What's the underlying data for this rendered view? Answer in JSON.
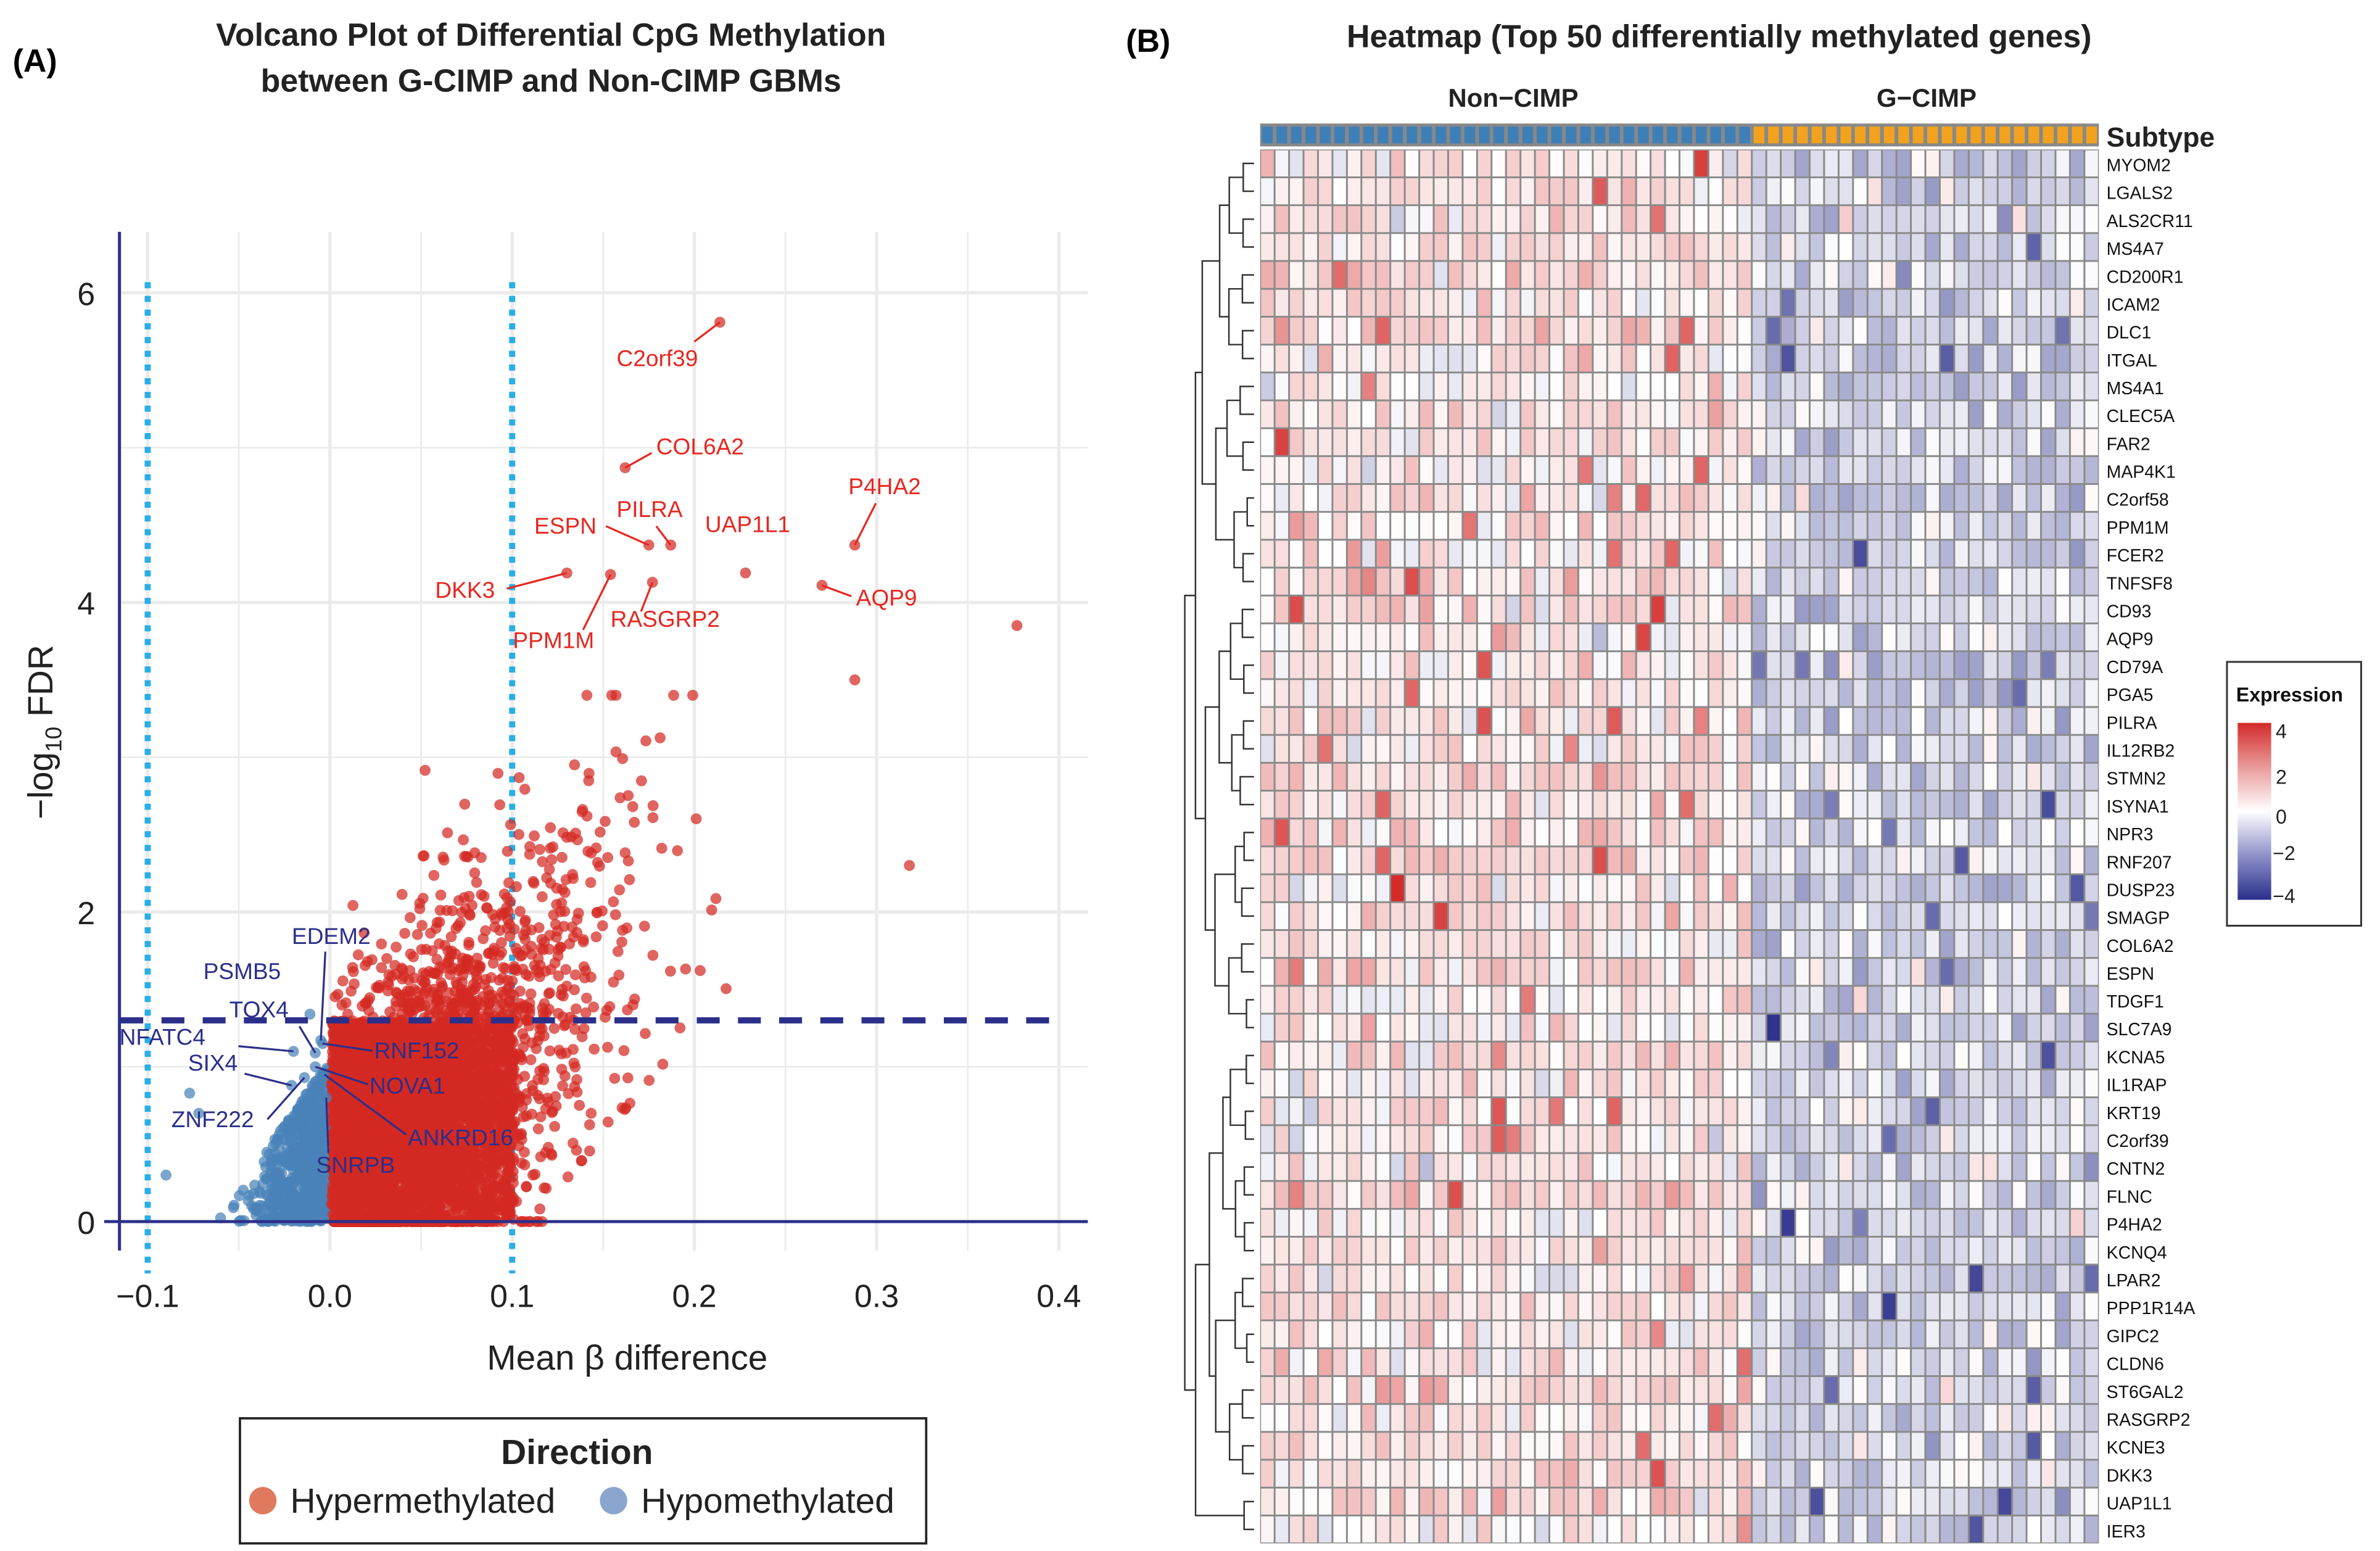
{
  "panel_a": {
    "panel_label": "(A)",
    "title_line1": "Volcano Plot of Differential CpG Methylation",
    "title_line2": "between G-CIMP and Non-CIMP GBMs",
    "legend": {
      "title": "Direction",
      "entries": [
        {
          "label": "Hypermethylated",
          "color": "#e07a5f"
        },
        {
          "label": "Hypomethylated",
          "color": "#8aa6cf"
        }
      ]
    }
  },
  "panel_b": {
    "panel_label": "(B)",
    "title": "Heatmap (Top 50 differentially methylated genes)",
    "group_labels": [
      "Non−CIMP",
      "G−CIMP"
    ],
    "annotation_label": "Subtype",
    "legend": {
      "title": "Expression",
      "ticks": [
        "4",
        "2",
        "0",
        "−2",
        "−4"
      ]
    }
  },
  "chart_data": [
    {
      "type": "scatter",
      "title": "Volcano Plot of Differential CpG Methylation between G-CIMP and Non-CIMP GBMs",
      "xlabel": "Mean β difference",
      "ylabel_prefix": "−log",
      "ylabel_sub": "10",
      "ylabel_suffix": " FDR",
      "xlim": [
        -0.115,
        0.41
      ],
      "ylim": [
        -0.15,
        6.4
      ],
      "xticks": [
        "−0.1",
        "0.0",
        "0.1",
        "0.2",
        "0.3",
        "0.4"
      ],
      "xtick_values": [
        -0.1,
        0,
        0.1,
        0.2,
        0.3,
        0.4
      ],
      "yticks": [
        "0",
        "2",
        "4",
        "6"
      ],
      "ytick_values": [
        0,
        2,
        4,
        6
      ],
      "grid": true,
      "thresholds": {
        "fdr_neglog10": 1.3,
        "beta_diff": [
          -0.1,
          0.1
        ]
      },
      "colors": {
        "hyper": "#d42a22",
        "hypo": "#4a82b8",
        "hyper_label": "#e8261f",
        "hypo_label": "#2b2f8a",
        "threshold_h": "#2b2f8a",
        "threshold_v": "#29aee6"
      },
      "legend_position": "bottom",
      "labeled_points": [
        {
          "gene": "C2orf39",
          "x": 0.214,
          "y": 5.81,
          "dir": "hyper"
        },
        {
          "gene": "COL6A2",
          "x": 0.162,
          "y": 4.87,
          "dir": "hyper"
        },
        {
          "gene": "ESPN",
          "x": 0.175,
          "y": 4.37,
          "dir": "hyper"
        },
        {
          "gene": "PILRA",
          "x": 0.187,
          "y": 4.37,
          "dir": "hyper"
        },
        {
          "gene": "UAP1L1",
          "x": 0.228,
          "y": 4.19,
          "dir": "hyper"
        },
        {
          "gene": "P4HA2",
          "x": 0.288,
          "y": 4.37,
          "dir": "hyper"
        },
        {
          "gene": "AQP9",
          "x": 0.27,
          "y": 4.11,
          "dir": "hyper"
        },
        {
          "gene": "DKK3",
          "x": 0.13,
          "y": 4.19,
          "dir": "hyper"
        },
        {
          "gene": "PPM1M",
          "x": 0.154,
          "y": 4.18,
          "dir": "hyper"
        },
        {
          "gene": "RASGRP2",
          "x": 0.177,
          "y": 4.13,
          "dir": "hyper"
        },
        {
          "gene": "PSMB5",
          "x": -0.011,
          "y": 1.34,
          "dir": "hypo"
        },
        {
          "gene": "EDEM2",
          "x": -0.005,
          "y": 1.17,
          "dir": "hypo"
        },
        {
          "gene": "TOX4",
          "x": -0.008,
          "y": 1.09,
          "dir": "hypo"
        },
        {
          "gene": "NFATC4",
          "x": -0.02,
          "y": 1.1,
          "dir": "hypo"
        },
        {
          "gene": "RNF152",
          "x": -0.004,
          "y": 1.15,
          "dir": "hypo"
        },
        {
          "gene": "NOVA1",
          "x": -0.008,
          "y": 1.0,
          "dir": "hypo"
        },
        {
          "gene": "SIX4",
          "x": -0.021,
          "y": 0.88,
          "dir": "hypo"
        },
        {
          "gene": "ZNF222",
          "x": -0.014,
          "y": 0.93,
          "dir": "hypo"
        },
        {
          "gene": "ANKRD16",
          "x": -0.003,
          "y": 0.95,
          "dir": "hypo"
        },
        {
          "gene": "SNRPB",
          "x": -0.002,
          "y": 0.8,
          "dir": "hypo"
        }
      ],
      "outlier_points": [
        {
          "x": 0.377,
          "y": 3.85
        },
        {
          "x": 0.318,
          "y": 2.3
        },
        {
          "x": 0.288,
          "y": 3.5
        },
        {
          "x": -0.09,
          "y": 0.3
        },
        {
          "x": -0.077,
          "y": 0.83
        },
        {
          "x": -0.072,
          "y": 0.7
        }
      ]
    },
    {
      "type": "heatmap",
      "title": "Heatmap (Top 50 differentially methylated genes)",
      "groups": [
        {
          "name": "Non−CIMP",
          "n": 34,
          "color": "#3f7fb8"
        },
        {
          "name": "G−CIMP",
          "n": 24,
          "color": "#f2a21e"
        }
      ],
      "color_scale": {
        "min": -4,
        "max": 4,
        "low": "#2b2f8a",
        "mid": "#ffffff",
        "high": "#d42a2a"
      },
      "legend_title": "Expression",
      "row_dendrogram": true,
      "genes": [
        "MYOM2",
        "LGALS2",
        "ALS2CR11",
        "MS4A7",
        "CD200R1",
        "ICAM2",
        "DLC1",
        "ITGAL",
        "MS4A1",
        "CLEC5A",
        "FAR2",
        "MAP4K1",
        "C2orf58",
        "PPM1M",
        "FCER2",
        "TNFSF8",
        "CD93",
        "AQP9",
        "CD79A",
        "PGA5",
        "PILRA",
        "IL12RB2",
        "STMN2",
        "ISYNA1",
        "NPR3",
        "RNF207",
        "DUSP23",
        "SMAGP",
        "COL6A2",
        "ESPN",
        "TDGF1",
        "SLC7A9",
        "KCNA5",
        "IL1RAP",
        "KRT19",
        "C2orf39",
        "CNTN2",
        "FLNC",
        "P4HA2",
        "KCNQ4",
        "LPAR2",
        "PPP1R14A",
        "GIPC2",
        "CLDN6",
        "ST6GAL2",
        "RASGRP2",
        "KCNE3",
        "DKK3",
        "UAP1L1",
        "IER3"
      ]
    }
  ]
}
